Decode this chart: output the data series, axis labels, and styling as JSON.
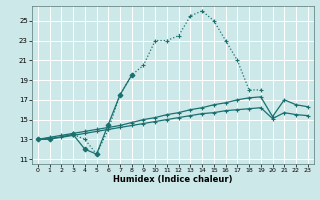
{
  "xlabel": "Humidex (Indice chaleur)",
  "bg_color": "#cce8e8",
  "grid_color": "#ffffff",
  "line_color": "#1a7070",
  "xlim": [
    -0.5,
    23.5
  ],
  "ylim": [
    10.5,
    26.5
  ],
  "yticks": [
    11,
    13,
    15,
    17,
    19,
    21,
    23,
    25
  ],
  "xticks": [
    0,
    1,
    2,
    3,
    4,
    5,
    6,
    7,
    8,
    9,
    10,
    11,
    12,
    13,
    14,
    15,
    16,
    17,
    18,
    19,
    20,
    21,
    22,
    23
  ],
  "lines": [
    {
      "x": [
        0,
        1,
        3,
        4,
        5,
        6,
        7,
        8,
        9,
        10,
        11,
        12,
        13,
        14,
        15,
        16,
        17,
        18,
        19
      ],
      "y": [
        13,
        13,
        13.5,
        13,
        11.5,
        14,
        17.5,
        19.5,
        20.5,
        23,
        23,
        23.5,
        25.5,
        26,
        25,
        23,
        21,
        18,
        18
      ],
      "style": "dotted",
      "marker": "+"
    },
    {
      "x": [
        0,
        1,
        3,
        4,
        5,
        6,
        7,
        8
      ],
      "y": [
        13,
        13,
        13.5,
        12,
        11.5,
        14.5,
        17.5,
        19.5
      ],
      "style": "solid",
      "marker": "D"
    },
    {
      "x": [
        0,
        1,
        2,
        3,
        4,
        5,
        6,
        7,
        8,
        9,
        10,
        11,
        12,
        13,
        14,
        15,
        16,
        17,
        18,
        19,
        20,
        21,
        22,
        23
      ],
      "y": [
        13,
        13.2,
        13.4,
        13.6,
        13.8,
        14.0,
        14.2,
        14.4,
        14.7,
        15.0,
        15.2,
        15.5,
        15.7,
        16.0,
        16.2,
        16.5,
        16.7,
        17.0,
        17.2,
        17.3,
        15.3,
        17.0,
        16.5,
        16.3
      ],
      "style": "solid",
      "marker": "+"
    },
    {
      "x": [
        0,
        1,
        2,
        3,
        4,
        5,
        6,
        7,
        8,
        9,
        10,
        11,
        12,
        13,
        14,
        15,
        16,
        17,
        18,
        19,
        20,
        21,
        22,
        23
      ],
      "y": [
        13,
        13.1,
        13.2,
        13.4,
        13.6,
        13.8,
        14.0,
        14.2,
        14.4,
        14.6,
        14.8,
        15.0,
        15.2,
        15.4,
        15.6,
        15.7,
        15.9,
        16.0,
        16.1,
        16.2,
        15.1,
        15.7,
        15.5,
        15.4
      ],
      "style": "solid",
      "marker": "+"
    }
  ]
}
